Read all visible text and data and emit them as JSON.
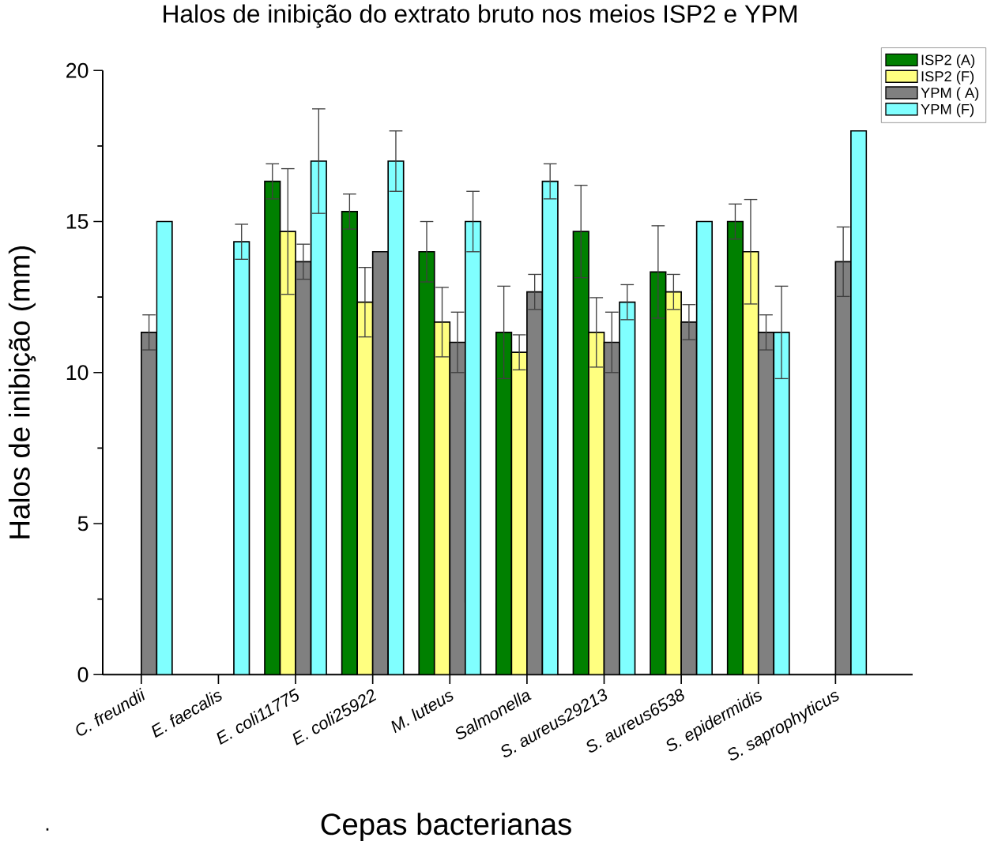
{
  "chart_data": {
    "type": "bar",
    "title": "Halos de inibição do extrato bruto nos meios ISP2 e YPM",
    "xlabel": "Cepas bacterianas",
    "ylabel": "Halos de inibição (mm)",
    "categories": [
      "C. freundii",
      "E. faecalis",
      "E. coli11775",
      "E. coli25922",
      "M. luteus",
      "Salmonella",
      "S. aureus29213",
      "S. aureus6538",
      "S. epidermidis",
      "S. saprophyticus"
    ],
    "series": [
      {
        "name": "ISP2 (A)",
        "color": "#008000",
        "values": [
          null,
          null,
          16.33,
          15.33,
          14,
          11.33,
          14.67,
          13.33,
          15,
          null
        ],
        "errors": [
          null,
          null,
          0.58,
          0.58,
          1,
          1.53,
          1.53,
          1.53,
          0.58,
          null
        ]
      },
      {
        "name": "ISP2 (F)",
        "color": "#ffff80",
        "values": [
          null,
          null,
          14.67,
          12.33,
          11.67,
          10.67,
          11.33,
          12.67,
          14,
          null
        ],
        "errors": [
          null,
          null,
          2.08,
          1.15,
          1.15,
          0.58,
          1.15,
          0.58,
          1.73,
          null
        ]
      },
      {
        "name": "YPM ( A)",
        "color": "#808080",
        "values": [
          11.33,
          null,
          13.67,
          14,
          11,
          12.67,
          11,
          11.67,
          11.33,
          13.67
        ],
        "errors": [
          0.58,
          null,
          0.58,
          null,
          1,
          0.58,
          1,
          0.58,
          0.58,
          1.15
        ]
      },
      {
        "name": "YPM (F)",
        "color": "#80ffff",
        "values": [
          15,
          14.33,
          17,
          17,
          15,
          16.33,
          12.33,
          15,
          11.33,
          18
        ],
        "errors": [
          null,
          0.58,
          1.73,
          1,
          1,
          0.58,
          0.58,
          null,
          1.53,
          null
        ]
      }
    ],
    "ylim": [
      0,
      20
    ],
    "yticks": [
      0,
      5,
      10,
      15,
      20
    ],
    "legend": "top right",
    "annotations": [
      "."
    ]
  }
}
